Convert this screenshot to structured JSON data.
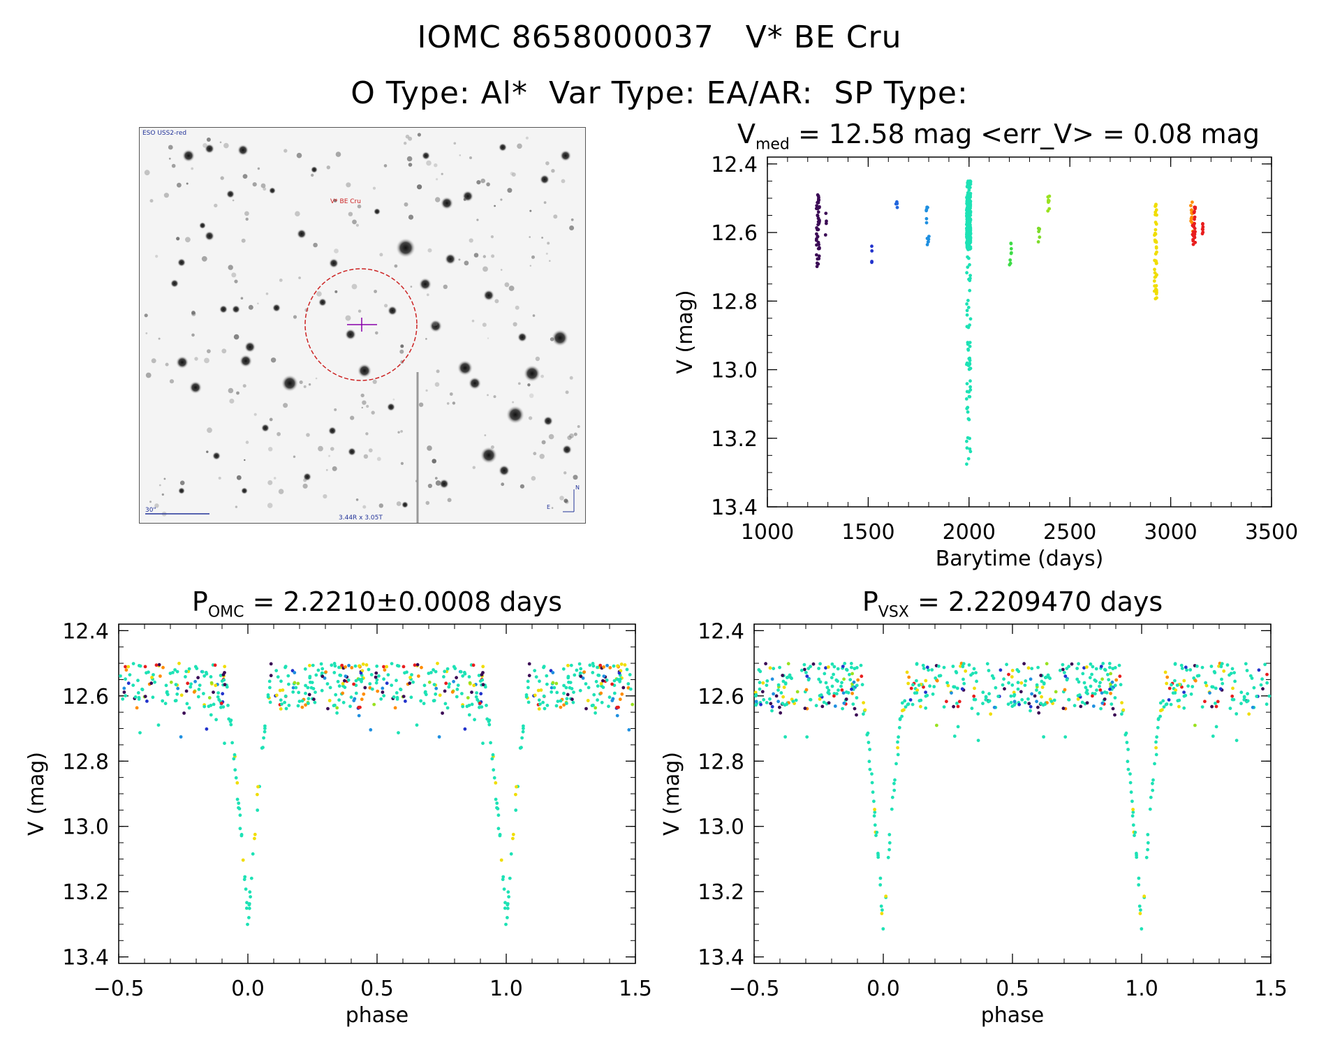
{
  "header": {
    "title": "IOMC 8658000037   V* BE Cru",
    "subtitle": "O Type: Al*  Var Type: EA/AR:  SP Type:"
  },
  "image_panel": {
    "survey_label": "ESO USS2-red",
    "star_label": "V* BE Cru",
    "scale_label": "30\"",
    "fov_label": "3.44R x 3.05T",
    "compass_north": "N",
    "compass_east": "E"
  },
  "chart_data": [
    {
      "type": "scatter",
      "title_main": "V",
      "title_sub": "med",
      "title_rest": " = 12.58 mag <err_V> = 0.08 mag",
      "xlabel": "Barytime (days)",
      "ylabel": "V (mag)",
      "xlim": [
        1000,
        3500
      ],
      "ylim": [
        13.4,
        12.38
      ],
      "y_inverted": true,
      "xticks": [
        1000,
        1500,
        2000,
        2500,
        3000,
        3500
      ],
      "xtick_labels": [
        "1000",
        "1500",
        "2000",
        "2500",
        "3000",
        "3500"
      ],
      "yticks": [
        12.4,
        12.6,
        12.8,
        13.0,
        13.2,
        13.4
      ],
      "ytick_labels": [
        "12.4",
        "12.6",
        "12.8",
        "13.0",
        "13.2",
        "13.4"
      ],
      "series": [
        {
          "color": "#3b0a55",
          "x_center": 1250,
          "x_spread": 8,
          "count": 45,
          "y_range": [
            12.49,
            12.7
          ]
        },
        {
          "color": "#3b0a55",
          "x_center": 1290,
          "x_spread": 5,
          "count": 4,
          "y_range": [
            12.48,
            12.62
          ]
        },
        {
          "color": "#2233cc",
          "x_center": 1515,
          "x_spread": 5,
          "count": 4,
          "y_range": [
            12.61,
            12.71
          ]
        },
        {
          "color": "#2266dd",
          "x_center": 1640,
          "x_spread": 4,
          "count": 4,
          "y_range": [
            12.51,
            12.54
          ]
        },
        {
          "color": "#1e8fe0",
          "x_center": 1795,
          "x_spread": 7,
          "count": 12,
          "y_range": [
            12.48,
            12.66
          ]
        },
        {
          "color": "#1de2b5",
          "x_center": 1998,
          "x_spread": 10,
          "count": 340,
          "y_range": [
            12.45,
            13.29
          ],
          "dense_range": [
            12.49,
            12.65
          ]
        },
        {
          "color": "#3ddc47",
          "x_center": 2205,
          "x_spread": 5,
          "count": 8,
          "y_range": [
            12.62,
            12.72
          ]
        },
        {
          "color": "#7ddc2a",
          "x_center": 2345,
          "x_spread": 5,
          "count": 6,
          "y_range": [
            12.58,
            12.64
          ]
        },
        {
          "color": "#99e220",
          "x_center": 2395,
          "x_spread": 5,
          "count": 8,
          "y_range": [
            12.49,
            12.56
          ]
        },
        {
          "color": "#f0dd00",
          "x_center": 2925,
          "x_spread": 6,
          "count": 45,
          "y_range": [
            12.49,
            12.8
          ]
        },
        {
          "color": "#ff8c00",
          "x_center": 3105,
          "x_spread": 6,
          "count": 12,
          "y_range": [
            12.51,
            12.6
          ]
        },
        {
          "color": "#e81e1e",
          "x_center": 3115,
          "x_spread": 7,
          "count": 25,
          "y_range": [
            12.52,
            12.64
          ]
        },
        {
          "color": "#e81e1e",
          "x_center": 3160,
          "x_spread": 4,
          "count": 7,
          "y_range": [
            12.55,
            12.62
          ]
        }
      ]
    },
    {
      "type": "scatter",
      "title_main": "P",
      "title_sub": "OMC",
      "title_rest": " = 2.2210±0.0008 days",
      "xlabel": "phase",
      "ylabel": "V (mag)",
      "xlim": [
        -0.5,
        1.5
      ],
      "ylim": [
        13.42,
        12.38
      ],
      "y_inverted": true,
      "period": 2.221,
      "xticks": [
        -0.5,
        0.0,
        0.5,
        1.0,
        1.5
      ],
      "xtick_labels": [
        "−0.5",
        "0.0",
        "0.5",
        "1.0",
        "1.5"
      ],
      "yticks": [
        12.4,
        12.6,
        12.8,
        13.0,
        13.2,
        13.4
      ],
      "ytick_labels": [
        "12.4",
        "12.6",
        "12.8",
        "13.0",
        "13.2",
        "13.4"
      ],
      "eclipse": {
        "phase_center": 0.0,
        "depth_mag": 13.3,
        "half_width": 0.08
      }
    },
    {
      "type": "scatter",
      "title_main": "P",
      "title_sub": "VSX",
      "title_rest": " = 2.2209470 days",
      "xlabel": "phase",
      "ylabel": "V (mag)",
      "xlim": [
        -0.5,
        1.5
      ],
      "ylim": [
        13.42,
        12.38
      ],
      "y_inverted": true,
      "period": 2.220947,
      "xticks": [
        -0.5,
        0.0,
        0.5,
        1.0,
        1.5
      ],
      "xtick_labels": [
        "−0.5",
        "0.0",
        "0.5",
        "1.0",
        "1.5"
      ],
      "yticks": [
        12.4,
        12.6,
        12.8,
        13.0,
        13.2,
        13.4
      ],
      "ytick_labels": [
        "12.4",
        "12.6",
        "12.8",
        "13.0",
        "13.2",
        "13.4"
      ],
      "eclipse": {
        "phase_center": 0.0,
        "depth_mag": 13.3,
        "half_width": 0.08
      }
    }
  ],
  "phase_colors": [
    "#3b0a55",
    "#2233cc",
    "#1e8fe0",
    "#1de2b5",
    "#3ddc47",
    "#99e220",
    "#f0dd00",
    "#ff8c00",
    "#e81e1e"
  ]
}
